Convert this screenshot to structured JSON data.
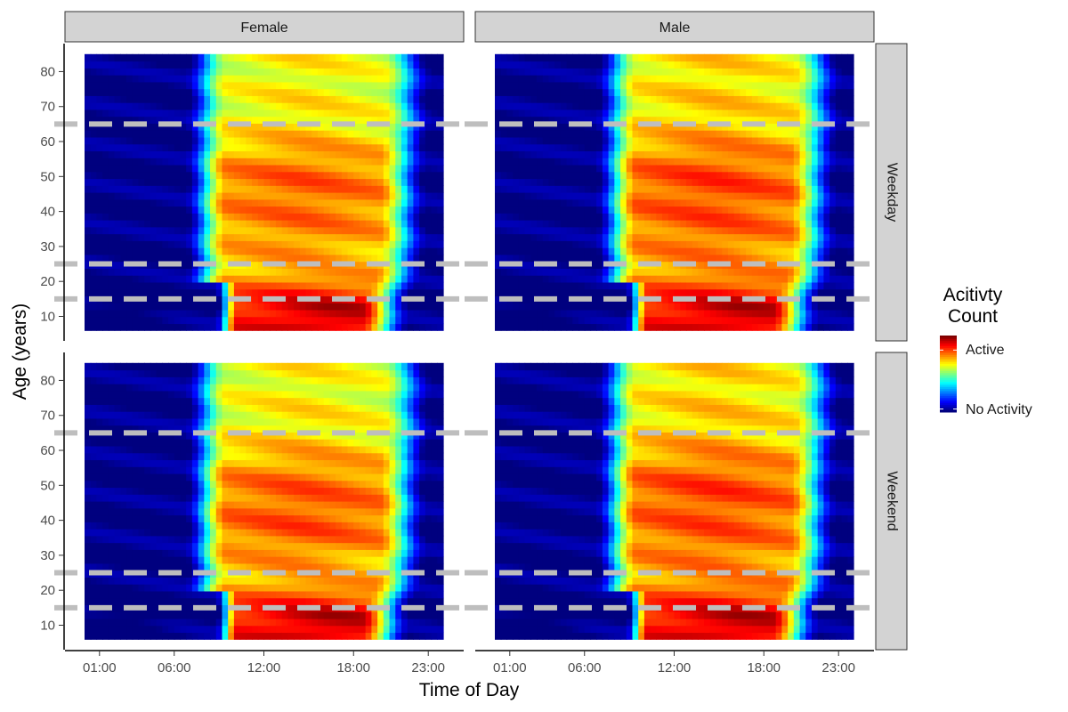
{
  "chart_data": {
    "type": "heatmap",
    "facet_columns": [
      "Female",
      "Male"
    ],
    "facet_rows": [
      "Weekday",
      "Weekend"
    ],
    "xlabel": "Time of Day",
    "ylabel": "Age (years)",
    "x_ticks": [
      "01:00",
      "06:00",
      "12:00",
      "18:00",
      "23:00"
    ],
    "x_tick_hours": [
      1,
      6,
      12,
      18,
      23
    ],
    "xlim_hours": [
      0,
      24
    ],
    "y_ticks": [
      10,
      20,
      30,
      40,
      50,
      60,
      70,
      80
    ],
    "ylim": [
      3,
      88
    ],
    "data_age_range": [
      6,
      85
    ],
    "reference_lines_age": [
      15,
      25,
      65
    ],
    "reference_line_color": "#bebebe",
    "legend": {
      "title_line1": "Acitivty",
      "title_line2": "Count",
      "high_label": "Active",
      "low_label": "No Activity"
    },
    "colorscale": [
      "#00007f",
      "#0000ff",
      "#007fff",
      "#00ffff",
      "#7fff7f",
      "#ffff00",
      "#ff7f00",
      "#ff0000",
      "#7f0000"
    ],
    "strip_fill": "#d3d3d3",
    "grid": false
  }
}
